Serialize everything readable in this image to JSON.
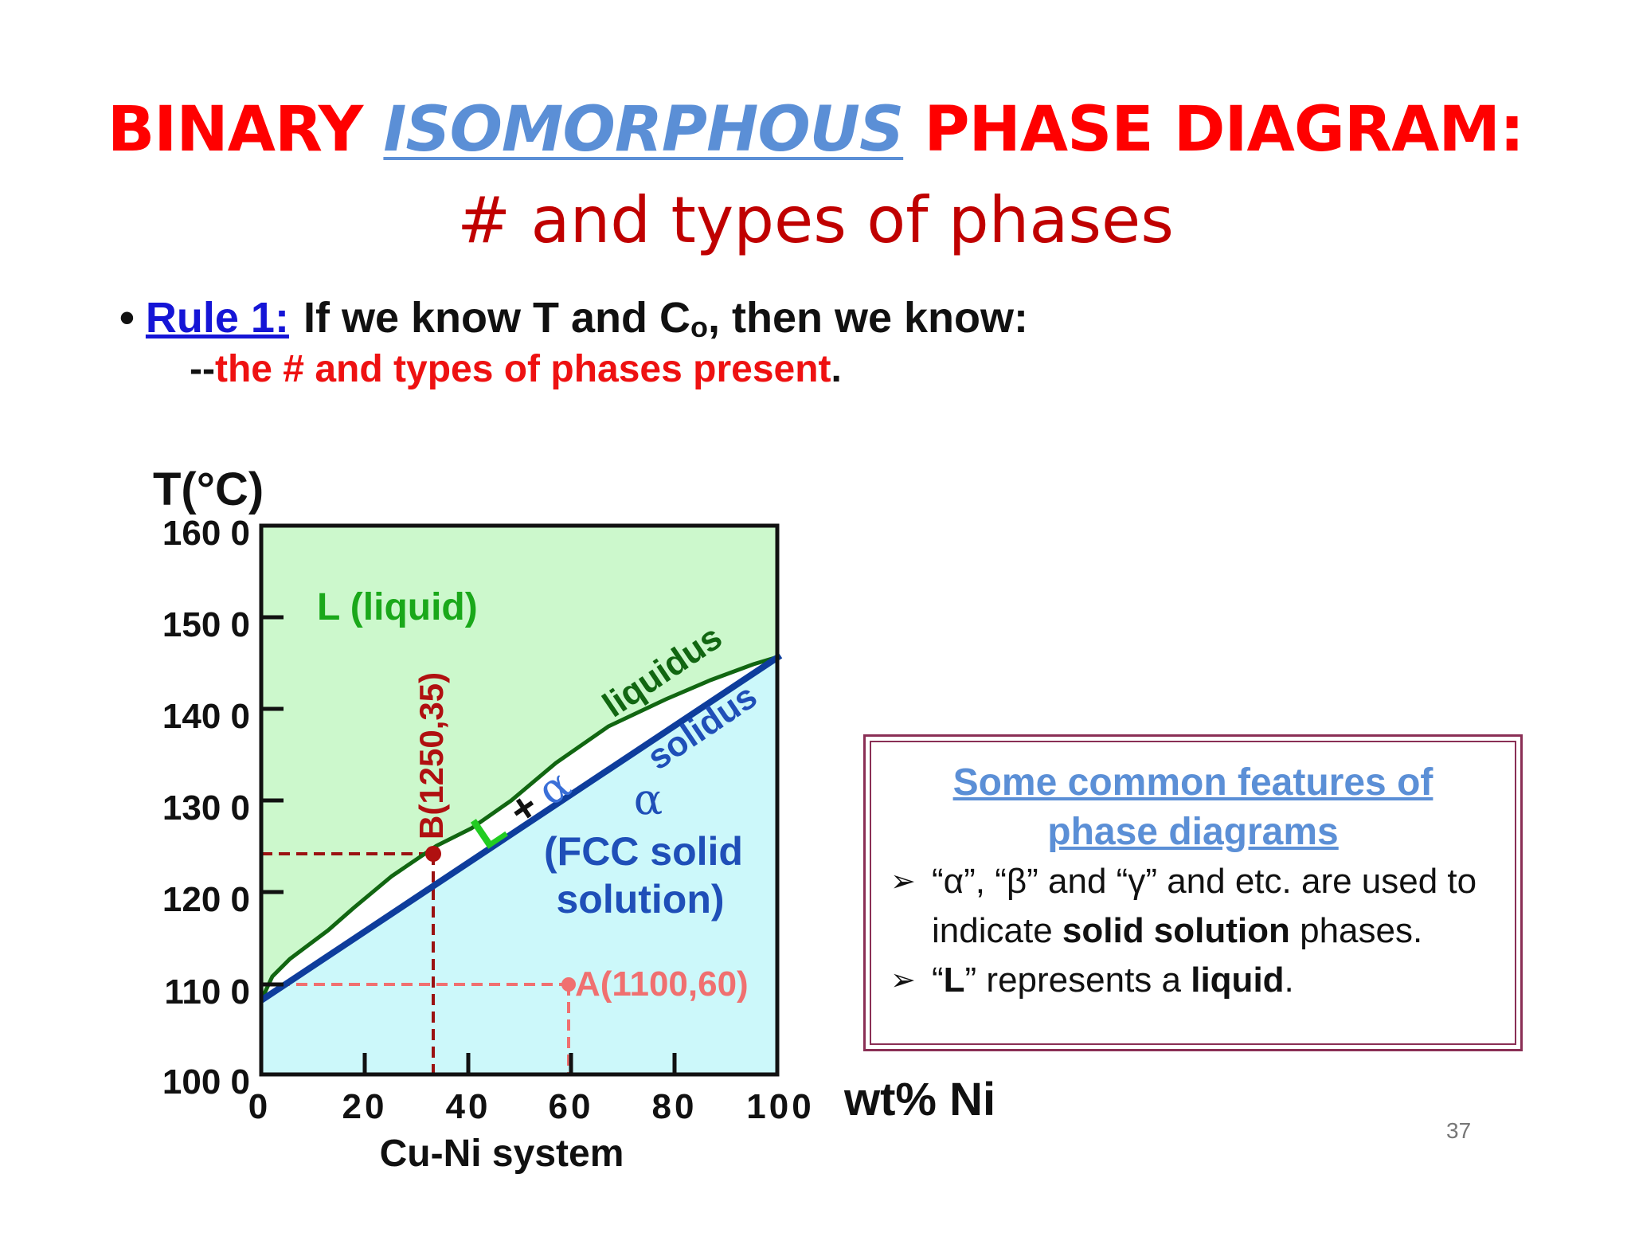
{
  "title": {
    "part1": "BINARY ",
    "part2": "ISOMORPHOUS",
    "part3": " PHASE DIAGRAM:"
  },
  "subtitle": "# and types of phases",
  "rule": {
    "label": "Rule 1:",
    "text_before": "If  we know T and C",
    "sub": "o",
    "text_after": ", then we know:",
    "sub_dash": "--",
    "sub_red": "the # and types of phases present",
    "sub_end": "."
  },
  "diagram": {
    "y_axis_label": "T(°C)",
    "y_ticks": [
      "160 0",
      "150 0",
      "140 0",
      "130 0",
      "120 0",
      "110 0",
      "100 0"
    ],
    "x_ticks": [
      "0",
      "20",
      "40",
      "60",
      "80",
      "100"
    ],
    "x_axis_label": "wt% Ni",
    "system_label": "Cu-Ni system",
    "region_liquid": "L (liquid)",
    "region_two_phase_L": "L",
    "region_two_phase_plus": "+",
    "region_two_phase_alpha": "α",
    "region_solid_alpha": "α",
    "region_solid_line1": "(FCC solid",
    "region_solid_line2": "solution)",
    "liquidus_label": "liquidus",
    "solidus_label": "solidus",
    "point_A": "A(1100,60)",
    "point_B": "B(1250,35)",
    "colors": {
      "liquid": "#ccf8cc",
      "solid": "#ccf8fa",
      "liquidus": "#116611",
      "solidus": "#0e3d9c",
      "point_A": "#f07070",
      "point_B": "#9b1111"
    }
  },
  "features": {
    "heading_line1": "Some common features of",
    "heading_line2": "phase diagrams",
    "item1_pre": "“α”, “β” and “γ” and etc. are used to indicate ",
    "item1_bold": "solid solution",
    "item1_post": " phases.",
    "item2_pre": "“",
    "item2_L": "L",
    "item2_mid": "” represents a ",
    "item2_bold": "liquid",
    "item2_post": ".",
    "arrow": "➢"
  },
  "page_number": "37"
}
